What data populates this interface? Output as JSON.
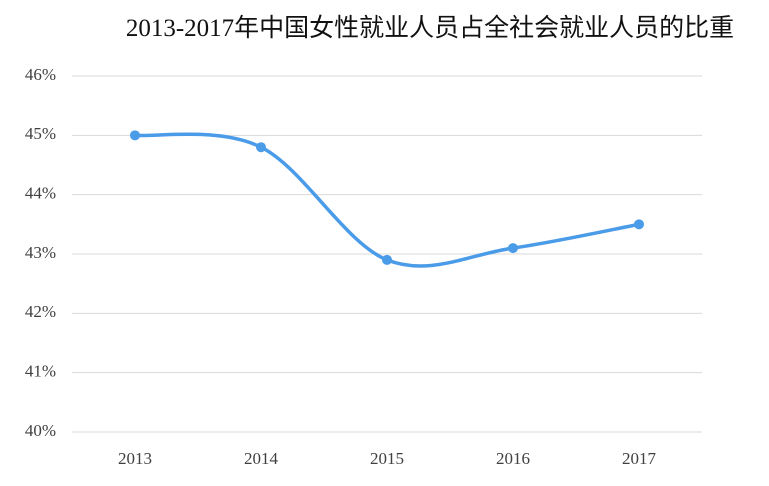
{
  "chart_data": {
    "type": "line",
    "title": "2013-2017年中国女性就业人员占全社会就业人员的比重",
    "categories": [
      "2013",
      "2014",
      "2015",
      "2016",
      "2017"
    ],
    "values": [
      45.0,
      44.8,
      42.9,
      43.1,
      43.5
    ],
    "color": "#4a9be8",
    "smooth": true,
    "ylim": [
      40,
      46
    ],
    "yticks": [
      {
        "value": 40,
        "label": "40%"
      },
      {
        "value": 41,
        "label": "41%"
      },
      {
        "value": 42,
        "label": "42%"
      },
      {
        "value": 43,
        "label": "43%"
      },
      {
        "value": 44,
        "label": "44%"
      },
      {
        "value": 45,
        "label": "45%"
      },
      {
        "value": 46,
        "label": "46%"
      }
    ],
    "grid": true
  }
}
